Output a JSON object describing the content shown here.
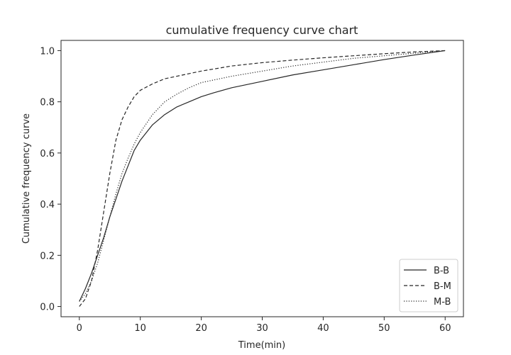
{
  "chart_data": {
    "type": "line",
    "title": "cumulative frequency curve chart",
    "xlabel": "Time(min)",
    "ylabel": "Cumulative frequency curve",
    "xlim": [
      -3,
      63
    ],
    "ylim": [
      -0.04,
      1.04
    ],
    "xticks": [
      0,
      10,
      20,
      30,
      40,
      50,
      60
    ],
    "yticks": [
      0.0,
      0.2,
      0.4,
      0.6,
      0.8,
      1.0
    ],
    "xtick_labels": [
      "0",
      "10",
      "20",
      "30",
      "40",
      "50",
      "60"
    ],
    "ytick_labels": [
      "0.0",
      "0.2",
      "0.4",
      "0.6",
      "0.8",
      "1.0"
    ],
    "grid": false,
    "legend_position": "lower-right",
    "series": [
      {
        "name": "B-B",
        "style": "solid",
        "color": "#262626",
        "x": [
          0,
          1,
          2,
          3,
          4,
          5,
          6,
          7,
          8,
          9,
          10,
          12,
          14,
          16,
          18,
          20,
          22,
          25,
          30,
          35,
          40,
          45,
          50,
          55,
          60
        ],
        "y": [
          0.02,
          0.07,
          0.13,
          0.2,
          0.27,
          0.35,
          0.42,
          0.49,
          0.55,
          0.61,
          0.65,
          0.71,
          0.75,
          0.78,
          0.8,
          0.82,
          0.835,
          0.855,
          0.88,
          0.905,
          0.925,
          0.945,
          0.965,
          0.983,
          1.0
        ]
      },
      {
        "name": "B-M",
        "style": "dashed",
        "color": "#262626",
        "x": [
          0,
          1,
          2,
          3,
          4,
          5,
          6,
          7,
          8,
          9,
          10,
          12,
          14,
          16,
          18,
          20,
          25,
          30,
          35,
          40,
          45,
          50,
          55,
          60
        ],
        "y": [
          0.0,
          0.03,
          0.1,
          0.22,
          0.37,
          0.52,
          0.65,
          0.73,
          0.78,
          0.82,
          0.845,
          0.87,
          0.89,
          0.9,
          0.91,
          0.92,
          0.94,
          0.953,
          0.963,
          0.972,
          0.98,
          0.988,
          0.995,
          1.0
        ]
      },
      {
        "name": "M-B",
        "style": "dotted",
        "color": "#262626",
        "x": [
          0,
          1,
          2,
          3,
          4,
          5,
          6,
          7,
          8,
          9,
          10,
          12,
          14,
          16,
          18,
          20,
          25,
          30,
          35,
          40,
          45,
          50,
          55,
          60
        ],
        "y": [
          0.02,
          0.05,
          0.1,
          0.17,
          0.26,
          0.35,
          0.44,
          0.52,
          0.58,
          0.635,
          0.68,
          0.75,
          0.8,
          0.83,
          0.855,
          0.875,
          0.9,
          0.92,
          0.94,
          0.955,
          0.97,
          0.98,
          0.99,
          1.0
        ]
      }
    ]
  }
}
